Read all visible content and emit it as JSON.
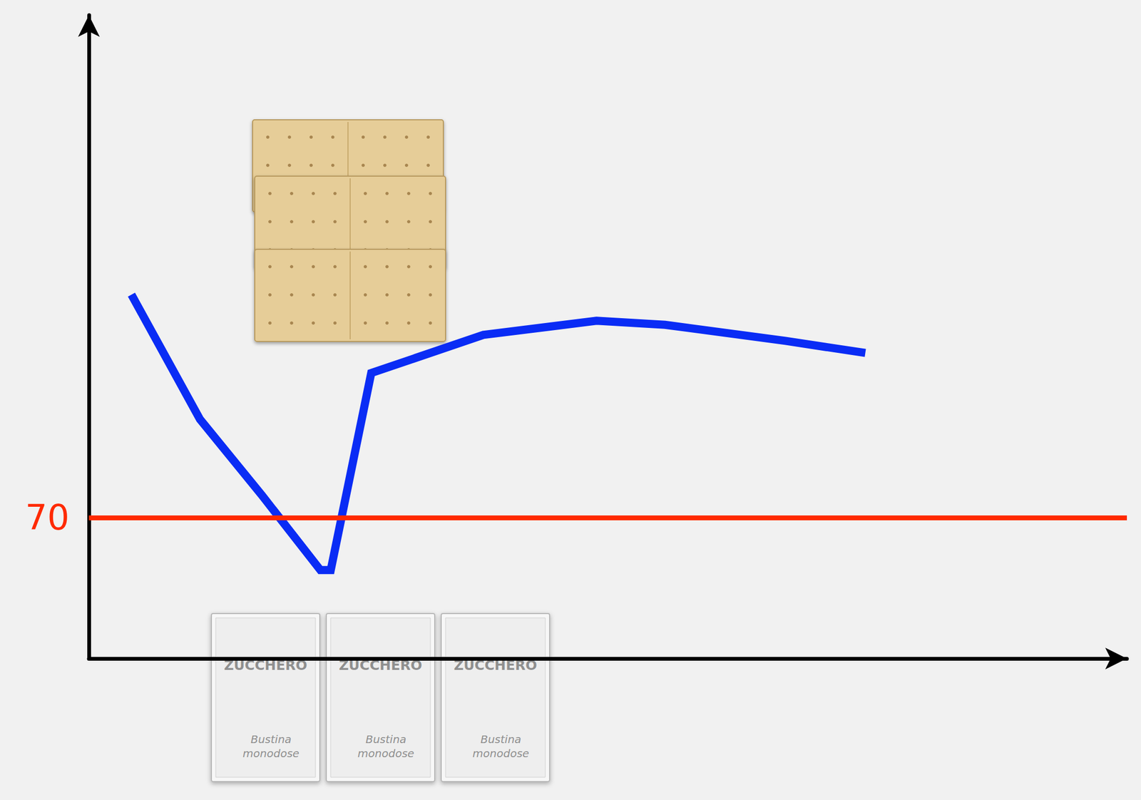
{
  "chart_data": {
    "type": "line",
    "x": [
      4.1,
      10.7,
      16.7,
      22.3,
      23.3,
      27.2,
      38,
      48.9,
      55.5,
      67.1,
      74.8
    ],
    "values": [
      181,
      119,
      81,
      44,
      44,
      142,
      161,
      168,
      166,
      158,
      152
    ],
    "color": "#0a2cf5",
    "marker": "none",
    "xlim": [
      0,
      100
    ],
    "ylim": [
      0,
      320
    ],
    "xticks": [],
    "yticks": [],
    "tick_labels": false,
    "grid": false,
    "annotations": [
      {
        "type": "hline",
        "y": 70,
        "label": "70",
        "color": "#ff2a00"
      }
    ],
    "images": [
      {
        "type": "sugar_packet",
        "title": "ZUCCHERO",
        "text": "Bustina monodose"
      },
      {
        "type": "sugar_packet",
        "title": "ZUCCHERO",
        "text": "Bustina monodose"
      },
      {
        "type": "sugar_packet",
        "title": "ZUCCHERO",
        "text": "Bustina monodose"
      }
    ]
  }
}
